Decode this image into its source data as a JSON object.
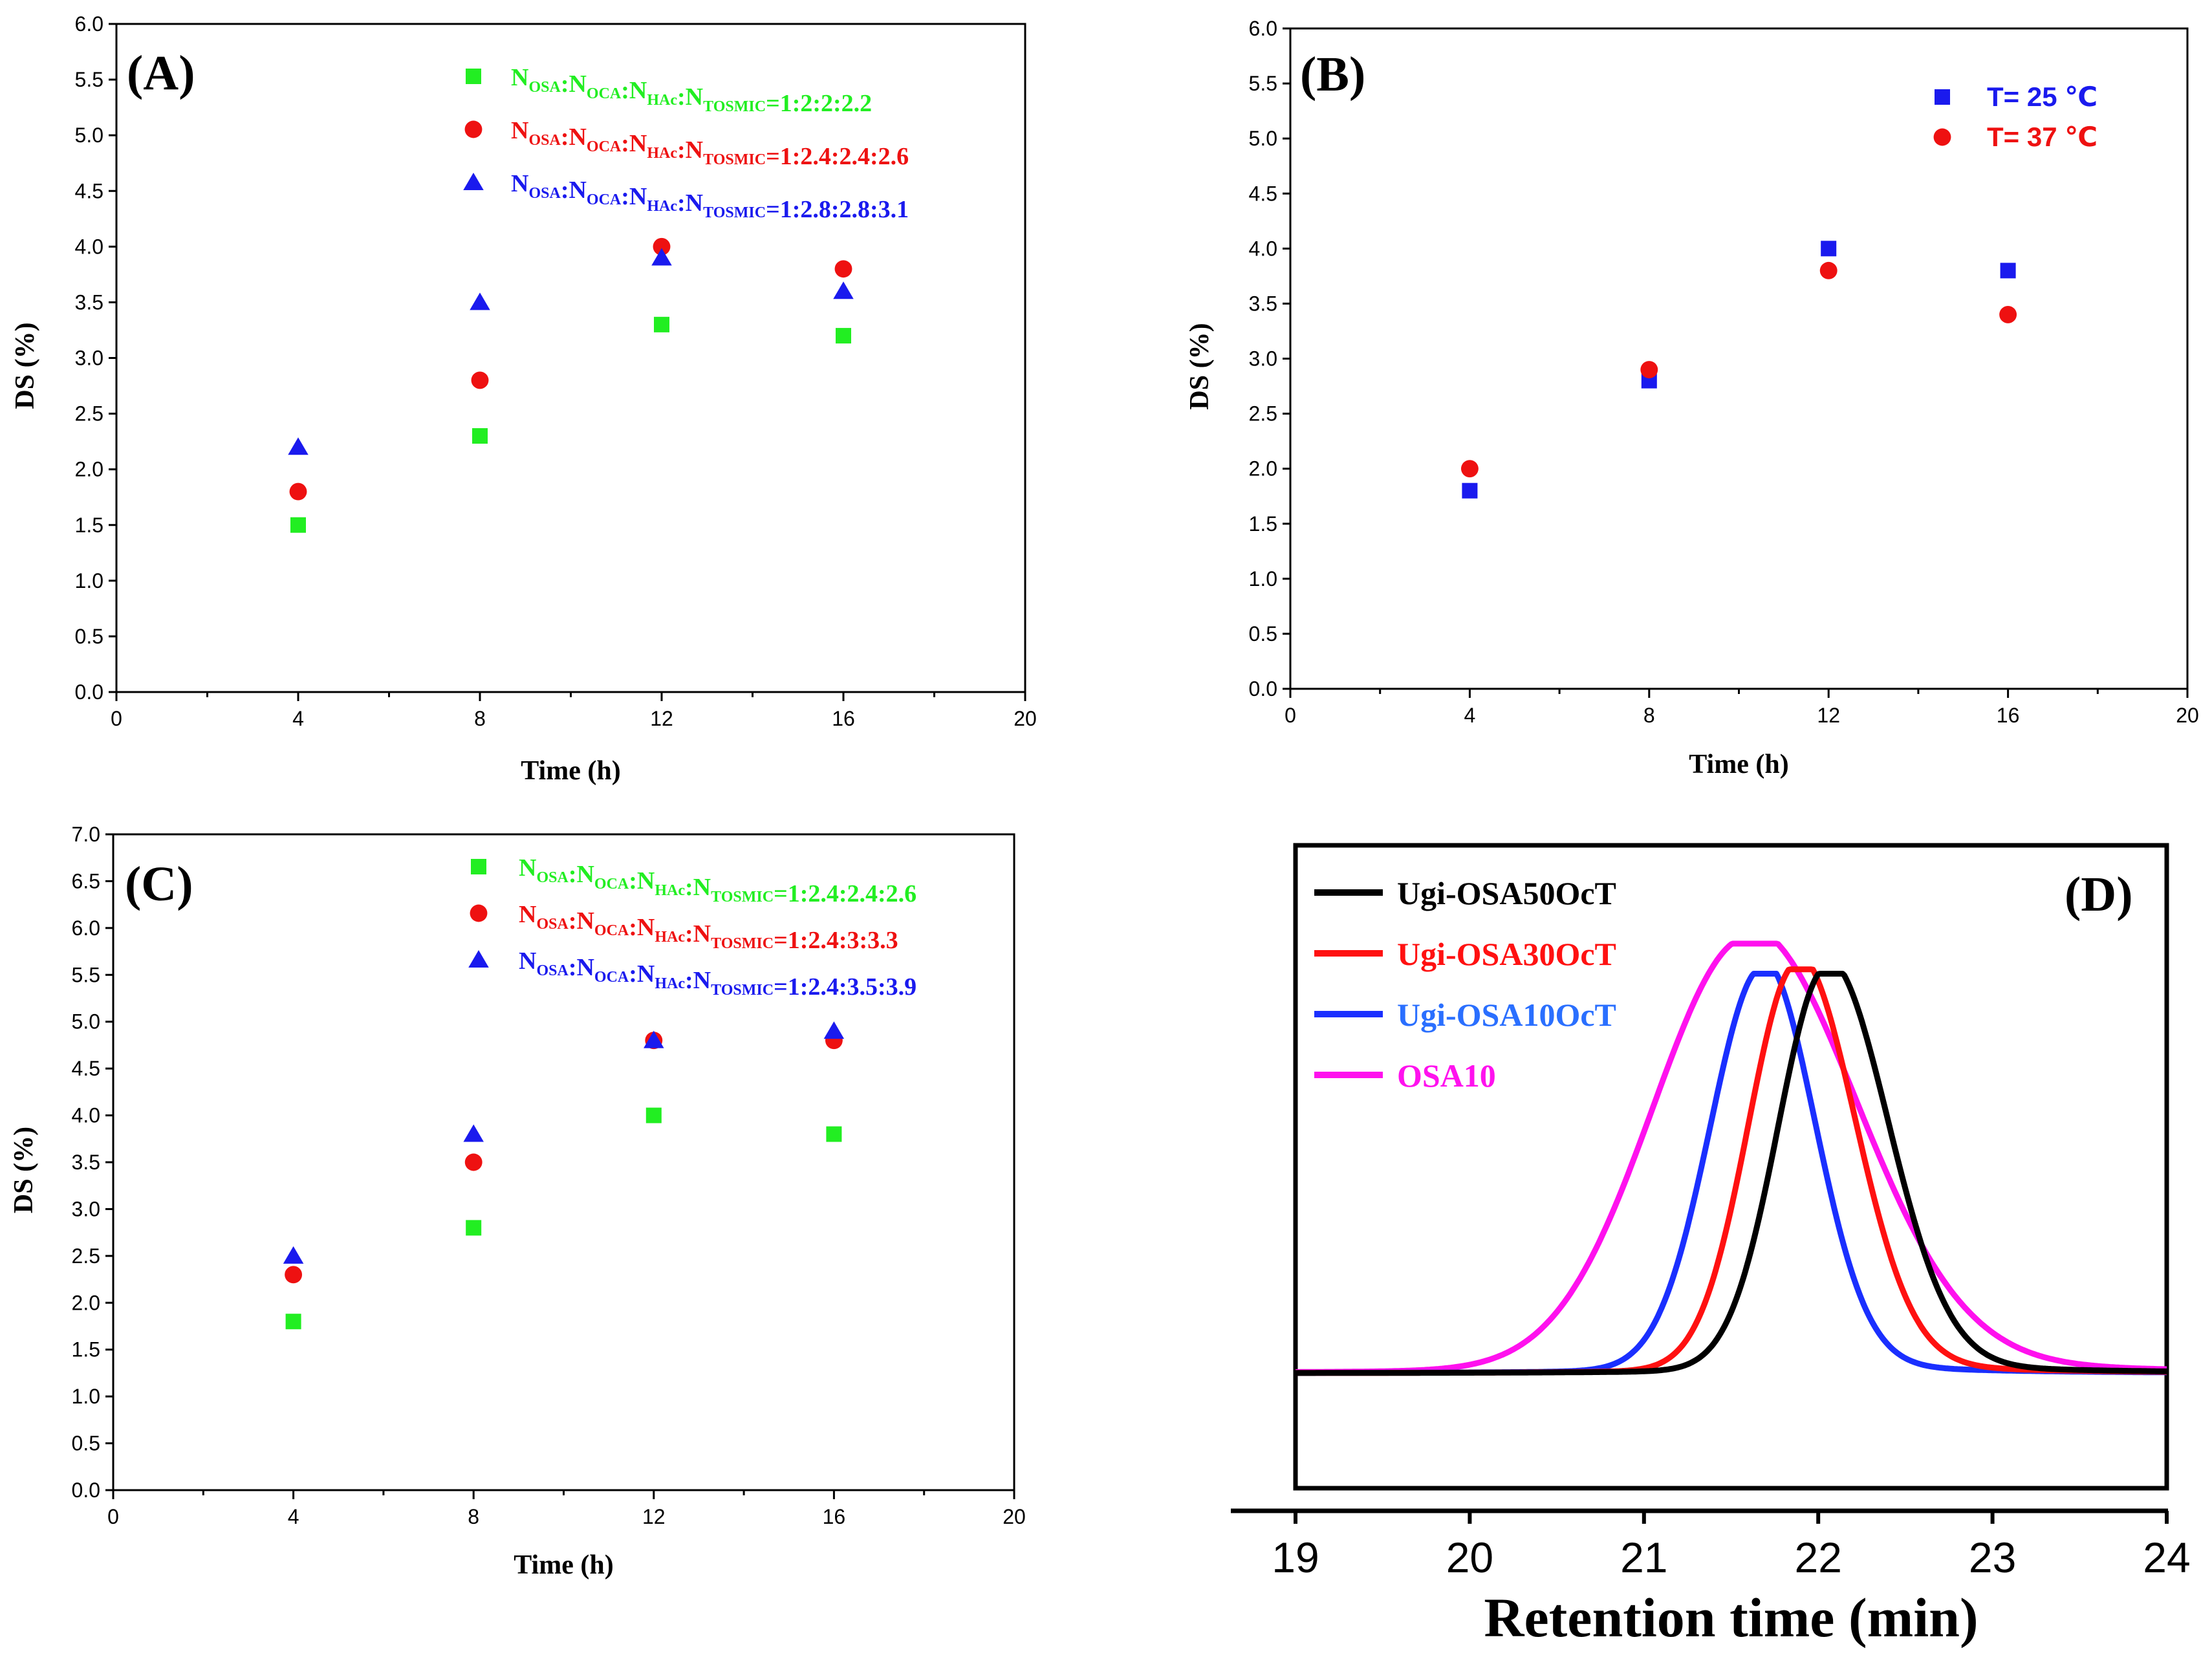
{
  "chart_data": [
    {
      "panel": "(A)",
      "type": "scatter",
      "xlabel": "Time (h)",
      "ylabel": "DS (%)",
      "xlim": [
        0,
        20
      ],
      "ylim": [
        0,
        6
      ],
      "xticks": [
        "0",
        "4",
        "8",
        "12",
        "16",
        "20"
      ],
      "yticks": [
        "0.0",
        "0.5",
        "1.0",
        "1.5",
        "2.0",
        "2.5",
        "3.0",
        "3.5",
        "4.0",
        "4.5",
        "5.0",
        "5.5",
        "6.0"
      ],
      "legend_position": "top-right",
      "grid": false,
      "series": [
        {
          "name": "N_OSA:N_OCA:N_HAc:N_TOSMIC=1:2:2:2.2",
          "label_parts": [
            [
              "N",
              "OSA"
            ],
            [
              ":N",
              "OCA"
            ],
            [
              ":N",
              "HAc"
            ],
            [
              ":N",
              "TOSMIC"
            ],
            [
              "=1:2:2:2.2",
              ""
            ]
          ],
          "marker": "square",
          "color": "#22ee22",
          "x": [
            4,
            8,
            12,
            16
          ],
          "y": [
            1.5,
            2.3,
            3.3,
            3.2
          ]
        },
        {
          "name": "N_OSA:N_OCA:N_HAc:N_TOSMIC=1:2.4:2.4:2.6",
          "label_parts": [
            [
              "N",
              "OSA"
            ],
            [
              ":N",
              "OCA"
            ],
            [
              ":N",
              "HAc"
            ],
            [
              ":N",
              "TOSMIC"
            ],
            [
              "=1:2.4:2.4:2.6",
              ""
            ]
          ],
          "marker": "circle",
          "color": "#ee1111",
          "x": [
            4,
            8,
            12,
            16
          ],
          "y": [
            1.8,
            2.8,
            4.0,
            3.8
          ]
        },
        {
          "name": "N_OSA:N_OCA:N_HAc:N_TOSMIC=1:2.8:2.8:3.1",
          "label_parts": [
            [
              "N",
              "OSA"
            ],
            [
              ":N",
              "OCA"
            ],
            [
              ":N",
              "HAc"
            ],
            [
              ":N",
              "TOSMIC"
            ],
            [
              "=1:2.8:2.8:3.1",
              ""
            ]
          ],
          "marker": "triangle",
          "color": "#1a1aee",
          "x": [
            4,
            8,
            12,
            16
          ],
          "y": [
            2.2,
            3.5,
            3.9,
            3.6
          ]
        }
      ]
    },
    {
      "panel": "(B)",
      "type": "scatter",
      "xlabel": "Time (h)",
      "ylabel": "DS (%)",
      "xlim": [
        0,
        20
      ],
      "ylim": [
        0,
        6
      ],
      "xticks": [
        "0",
        "4",
        "8",
        "12",
        "16",
        "20"
      ],
      "yticks": [
        "0.0",
        "0.5",
        "1.0",
        "1.5",
        "2.0",
        "2.5",
        "3.0",
        "3.5",
        "4.0",
        "4.5",
        "5.0",
        "5.5",
        "6.0"
      ],
      "legend_position": "top-right",
      "grid": false,
      "series": [
        {
          "name": "T= 25 ℃",
          "label_parts": [
            [
              "T= 25 ℃",
              ""
            ]
          ],
          "marker": "square",
          "color": "#1a1aee",
          "x": [
            4,
            8,
            12,
            16
          ],
          "y": [
            1.8,
            2.8,
            4.0,
            3.8
          ]
        },
        {
          "name": "T= 37 ℃",
          "label_parts": [
            [
              "T= 37 ℃",
              ""
            ]
          ],
          "marker": "circle",
          "color": "#ee1111",
          "x": [
            4,
            8,
            12,
            16
          ],
          "y": [
            2.0,
            2.9,
            3.8,
            3.4
          ]
        }
      ]
    },
    {
      "panel": "(C)",
      "type": "scatter",
      "xlabel": "Time (h)",
      "ylabel": "DS (%)",
      "xlim": [
        0,
        20
      ],
      "ylim": [
        0,
        7
      ],
      "xticks": [
        "0",
        "4",
        "8",
        "12",
        "16",
        "20"
      ],
      "yticks": [
        "0.0",
        "0.5",
        "1.0",
        "1.5",
        "2.0",
        "2.5",
        "3.0",
        "3.5",
        "4.0",
        "4.5",
        "5.0",
        "5.5",
        "6.0",
        "6.5",
        "7.0"
      ],
      "legend_position": "top-right",
      "grid": false,
      "series": [
        {
          "name": "N_OSA:N_OCA:N_HAc:N_TOSMIC=1:2.4:2.4:2.6",
          "label_parts": [
            [
              "N",
              "OSA"
            ],
            [
              ":N",
              "OCA"
            ],
            [
              ":N",
              "HAc"
            ],
            [
              ":N",
              "TOSMIC"
            ],
            [
              "=1:2.4:2.4:2.6",
              ""
            ]
          ],
          "marker": "square",
          "color": "#22ee22",
          "x": [
            4,
            8,
            12,
            16
          ],
          "y": [
            1.8,
            2.8,
            4.0,
            3.8
          ]
        },
        {
          "name": "N_OSA:N_OCA:N_HAc:N_TOSMIC=1:2.4:3:3.3",
          "label_parts": [
            [
              "N",
              "OSA"
            ],
            [
              ":N",
              "OCA"
            ],
            [
              ":N",
              "HAc"
            ],
            [
              ":N",
              "TOSMIC"
            ],
            [
              "=1:2.4:3:3.3",
              ""
            ]
          ],
          "marker": "circle",
          "color": "#ee1111",
          "x": [
            4,
            8,
            12,
            16
          ],
          "y": [
            2.3,
            3.5,
            4.8,
            4.8
          ]
        },
        {
          "name": "N_OSA:N_OCA:N_HAc:N_TOSMIC=1:2.4:3.5:3.9",
          "label_parts": [
            [
              "N",
              "OSA"
            ],
            [
              ":N",
              "OCA"
            ],
            [
              ":N",
              "HAc"
            ],
            [
              ":N",
              "TOSMIC"
            ],
            [
              "=1:2.4:3.5:3.9",
              ""
            ]
          ],
          "marker": "triangle",
          "color": "#1a1aee",
          "x": [
            4,
            8,
            12,
            16
          ],
          "y": [
            2.5,
            3.8,
            4.8,
            4.9
          ]
        }
      ]
    },
    {
      "panel": "(D)",
      "type": "line",
      "xlabel": "Retention time (min)",
      "ylabel": "",
      "xlim": [
        19,
        24
      ],
      "xticks": [
        "19",
        "20",
        "21",
        "22",
        "23",
        "24"
      ],
      "legend_position": "top-left",
      "grid": false,
      "series": [
        {
          "name": "Ugi-OSA50OcT",
          "color": "#000000",
          "peak": 22.05,
          "height": 0.93,
          "width_left": 0.28,
          "width_right": 0.35
        },
        {
          "name": "Ugi-OSA30OcT",
          "color": "#ff1111",
          "peak": 21.88,
          "height": 0.94,
          "width_left": 0.28,
          "width_right": 0.33
        },
        {
          "name": "Ugi-OSA10OcT",
          "color": "#1a2fff",
          "peak": 21.68,
          "height": 0.93,
          "width_left": 0.3,
          "width_right": 0.3
        },
        {
          "name": "OSA10",
          "color": "#ff11ee",
          "peak": 21.6,
          "height": 1.0,
          "width_left": 0.55,
          "width_right": 0.62
        }
      ]
    }
  ]
}
